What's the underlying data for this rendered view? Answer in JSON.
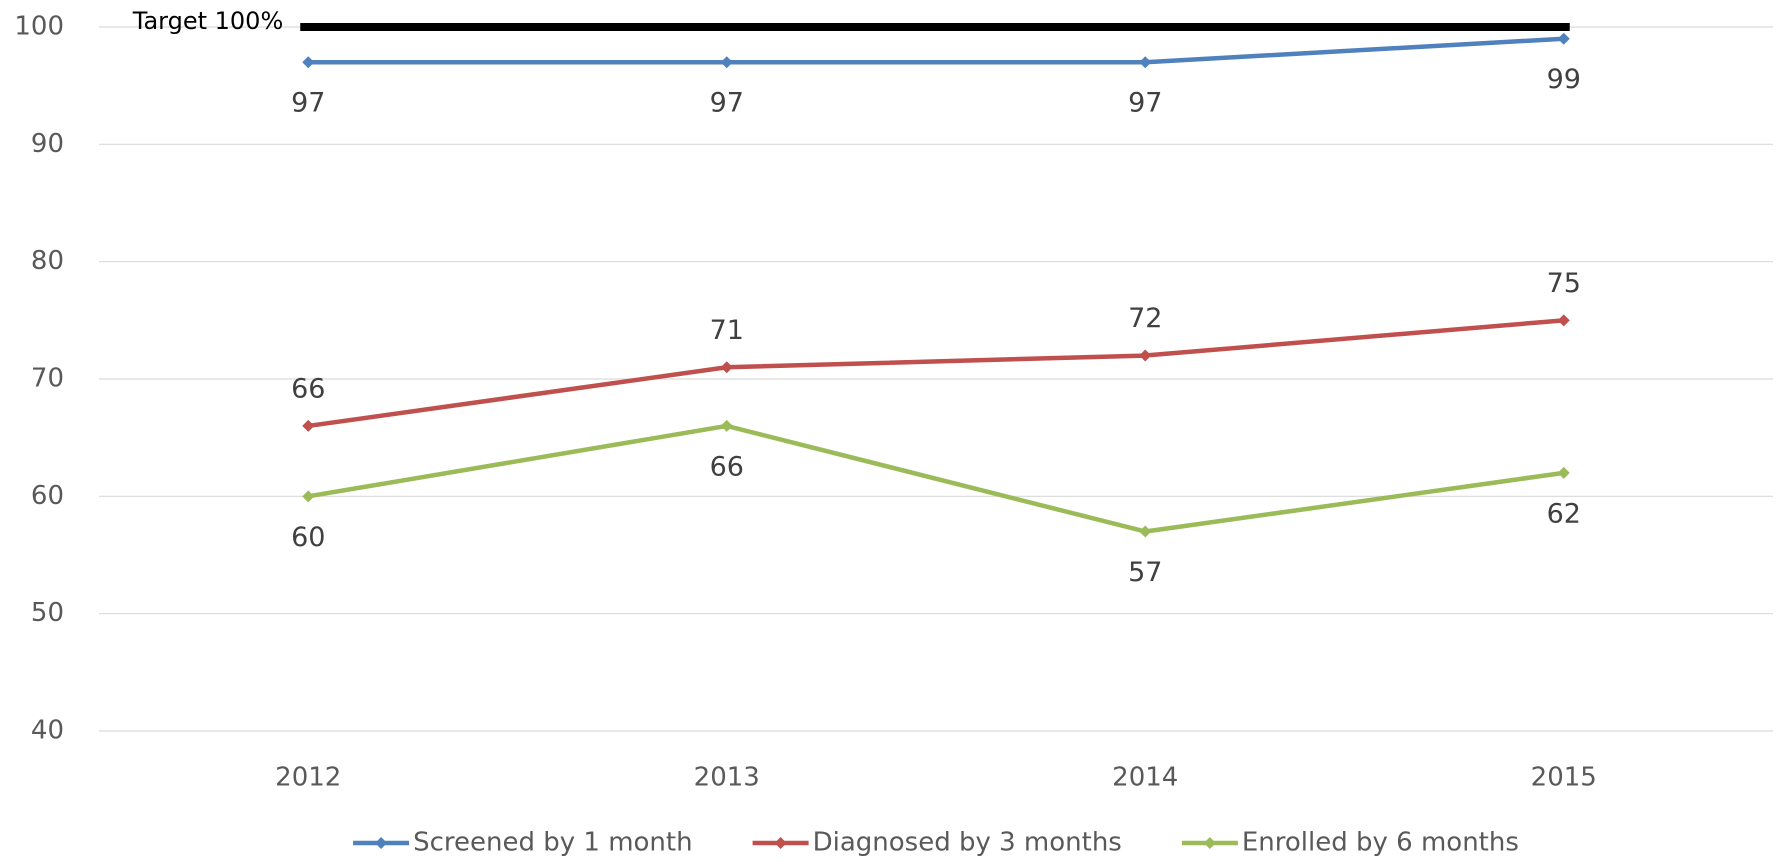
{
  "chart_data": {
    "type": "line",
    "categories": [
      "2012",
      "2013",
      "2014",
      "2015"
    ],
    "series": [
      {
        "name": "Screened by 1 month",
        "color": "#4f81bd",
        "values": [
          97,
          97,
          97,
          99
        ],
        "label_position": "below"
      },
      {
        "name": "Diagnosed by 3 months",
        "color": "#c0504d",
        "values": [
          66,
          71,
          72,
          75
        ],
        "label_position": "above"
      },
      {
        "name": "Enrolled by 6 months",
        "color": "#9bbb59",
        "values": [
          60,
          66,
          57,
          62
        ],
        "label_position": "below"
      }
    ],
    "target": {
      "label": "Target 100%",
      "value": 100,
      "color": "#000000"
    },
    "ylim": [
      40,
      100
    ],
    "yticks": [
      40,
      50,
      60,
      70,
      80,
      90,
      100
    ],
    "grid": true,
    "legend": "bottom"
  }
}
